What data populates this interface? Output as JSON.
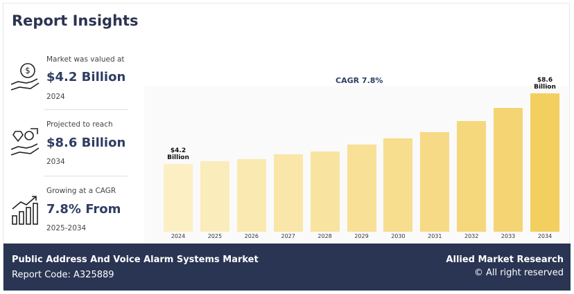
{
  "header": {
    "title": "Report Insights"
  },
  "insights": [
    {
      "caption": "Market was valued at",
      "value": "$4.2 Billion",
      "note": "2024"
    },
    {
      "caption": "Projected to reach",
      "value": "$8.6 Billion",
      "note": "2034"
    },
    {
      "caption": "Growing at a CAGR",
      "value": "7.8% From",
      "note": "2025-2034"
    }
  ],
  "chart_data": {
    "type": "bar",
    "annotation": "CAGR 7.8%",
    "categories": [
      "2024",
      "2025",
      "2026",
      "2027",
      "2028",
      "2029",
      "2030",
      "2031",
      "2032",
      "2033",
      "2034"
    ],
    "values": [
      4.2,
      4.4,
      4.5,
      4.8,
      5.0,
      5.4,
      5.8,
      6.2,
      6.9,
      7.7,
      8.6
    ],
    "value_labels": [
      "$4.2 Billion",
      null,
      null,
      null,
      null,
      null,
      null,
      null,
      null,
      null,
      "$8.6 Billion"
    ],
    "colors": [
      "#fcefc4",
      "#fbecbb",
      "#fbe9b2",
      "#fae6a9",
      "#f9e3a0",
      "#f8e097",
      "#f7dd8e",
      "#f6da85",
      "#f5d77c",
      "#f4d473",
      "#f2cf5f"
    ]
  },
  "footer": {
    "market": "Public Address And Voice Alarm Systems Market",
    "code": "Report Code: A325889",
    "publisher": "Allied Market Research",
    "rights": "© All right reserved"
  }
}
